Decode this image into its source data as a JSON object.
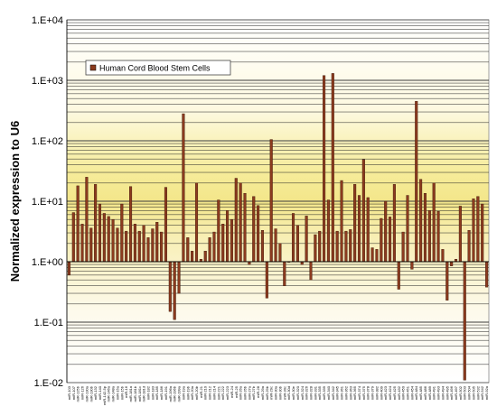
{
  "chart_data": {
    "type": "bar",
    "title": "",
    "xlabel": "",
    "ylabel": "Normalized expression to U6",
    "yscale": "log",
    "ylim": [
      0.01,
      10000
    ],
    "baseline": 1,
    "yticks": [
      "1.E-02",
      "1.E-01",
      "1.E+00",
      "1.E+01",
      "1.E+02",
      "1.E+03",
      "1.E+04"
    ],
    "grid": true,
    "legend_position": "top-left",
    "series": [
      {
        "name": "Human Cord Blood Stem Cells",
        "color": "#8B3A1E",
        "values": [
          0.6,
          6.5,
          18,
          4.2,
          25,
          3.6,
          19,
          9,
          6.3,
          5.6,
          5,
          3.6,
          9,
          3.2,
          17.5,
          4.2,
          3.2,
          4,
          2.5,
          3.5,
          4.5,
          3.1,
          17,
          0.15,
          0.11,
          0.3,
          280,
          2.5,
          1.5,
          20,
          1.1,
          1.5,
          2.5,
          3.1,
          10.5,
          4.2,
          7,
          5,
          24,
          20,
          13.5,
          0.9,
          12,
          8.5,
          3.3,
          0.25,
          105,
          3.5,
          2,
          0.4,
          1,
          6.3,
          4,
          0.9,
          5.7,
          0.5,
          2.8,
          3.2,
          1200,
          10.5,
          1300,
          3.2,
          22,
          3.2,
          3.4,
          19,
          12.5,
          49,
          11.5,
          1.7,
          1.6,
          5.2,
          10,
          5.5,
          19,
          0.35,
          3.1,
          12.5,
          0.75,
          450,
          23,
          13.5,
          7,
          20,
          6.8,
          1.6,
          0.23,
          0.85,
          1.1,
          8.3,
          0.011,
          3.3,
          11,
          12,
          9,
          0.38
        ],
        "colors": []
      }
    ],
    "categories": [
      "miR-103",
      "miR-107",
      "miR-125b",
      "miR-126",
      "miR-130a",
      "miR-130b",
      "miR-132",
      "miR-140",
      "miR-142-5p",
      "miR-146a",
      "miR-148a",
      "miR-15a",
      "miR-15b",
      "miR-16",
      "miR-181a",
      "miR-181b",
      "miR-181c",
      "miR-181d",
      "miR-182",
      "miR-183",
      "miR-185",
      "miR-186",
      "miR-191",
      "miR-196a",
      "miR-196b",
      "miR-199a",
      "miR-19a",
      "miR-19b",
      "miR-20a",
      "miR-20b",
      "miR-21",
      "miR-210",
      "miR-212",
      "miR-214",
      "miR-221",
      "miR-222",
      "miR-223",
      "miR-24",
      "miR-25",
      "miR-26a",
      "miR-26b",
      "miR-27a",
      "miR-27b",
      "miR-28",
      "miR-29a",
      "miR-29b",
      "miR-29c",
      "miR-30a",
      "miR-30b",
      "miR-30c",
      "miR-30d",
      "miR-30e",
      "miR-320",
      "miR-324",
      "miR-326",
      "miR-328",
      "miR-331",
      "miR-335",
      "miR-339",
      "miR-340",
      "miR-342",
      "miR-345",
      "miR-361",
      "miR-362",
      "miR-363",
      "miR-365",
      "miR-374",
      "miR-375",
      "miR-378",
      "miR-379",
      "miR-382",
      "miR-409",
      "miR-423",
      "miR-424",
      "miR-425",
      "miR-432",
      "miR-450",
      "miR-451",
      "miR-454",
      "miR-484",
      "miR-485",
      "miR-486",
      "miR-489",
      "miR-491",
      "miR-493",
      "miR-494",
      "miR-495",
      "miR-496",
      "miR-497",
      "miR-502",
      "miR-503",
      "miR-504",
      "miR-505",
      "miR-532",
      "miR-542",
      "miR-92a"
    ]
  }
}
